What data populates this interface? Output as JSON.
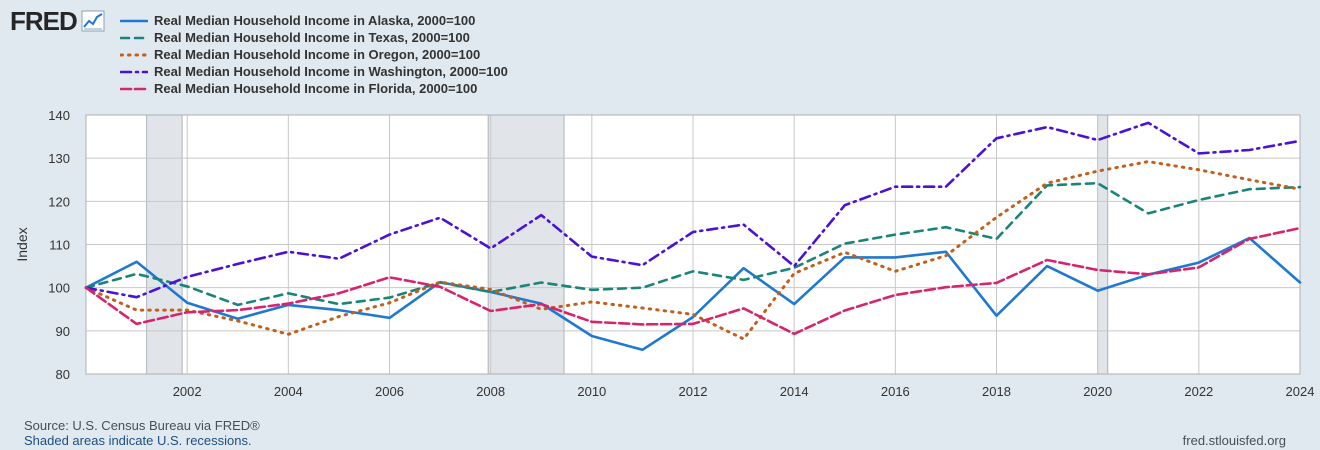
{
  "logo": {
    "text": "FRED",
    "icon": "line-chart-icon"
  },
  "footer": {
    "source": "Source: U.S. Census Bureau via FRED®",
    "recessions_note": "Shaded areas indicate U.S. recessions.",
    "site": "fred.stlouisfed.org"
  },
  "chart_data": {
    "type": "line",
    "ylabel": "Index",
    "ylim": [
      80,
      140
    ],
    "xlim": [
      2000,
      2024
    ],
    "yticks": [
      80,
      90,
      100,
      110,
      120,
      130,
      140
    ],
    "xticks": [
      2002,
      2004,
      2006,
      2008,
      2010,
      2012,
      2014,
      2016,
      2018,
      2020,
      2022,
      2024
    ],
    "grid": true,
    "legend_position": "top-left",
    "recessions": [
      [
        2001.2,
        2001.9
      ],
      [
        2007.95,
        2009.45
      ],
      [
        2020.0,
        2020.2
      ]
    ],
    "x": [
      2000,
      2001,
      2002,
      2003,
      2004,
      2005,
      2006,
      2007,
      2008,
      2009,
      2010,
      2011,
      2012,
      2013,
      2014,
      2015,
      2016,
      2017,
      2018,
      2019,
      2020,
      2021,
      2022,
      2023,
      2024
    ],
    "series": [
      {
        "name": "Real Median Household Income in Alaska, 2000=100",
        "color": "#1f78d1",
        "dash": "solid",
        "values": [
          100,
          106,
          96.5,
          92.8,
          96,
          94.8,
          93,
          101.3,
          99,
          96.3,
          88.8,
          85.6,
          93.2,
          104.5,
          96.2,
          107,
          107,
          108.3,
          93.5,
          105,
          99.3,
          103,
          105.8,
          111.5,
          101.2
        ]
      },
      {
        "name": "Real Median Household Income in Texas, 2000=100",
        "color": "#1b8478",
        "dash": "dash",
        "values": [
          100,
          103.2,
          100.3,
          96,
          98.7,
          96.2,
          97.7,
          101.2,
          99,
          101.2,
          99.5,
          100,
          103.8,
          101.8,
          104.6,
          110.2,
          112.3,
          114,
          111.3,
          123.7,
          124.2,
          117.2,
          120.3,
          122.8,
          123.3
        ]
      },
      {
        "name": "Real Median Household Income in Oregon, 2000=100",
        "color": "#c0601c",
        "dash": "dot",
        "values": [
          100,
          94.8,
          94.8,
          92.3,
          89.2,
          93.3,
          96.5,
          101.3,
          99.6,
          95,
          96.7,
          95.3,
          93.8,
          88.1,
          103.3,
          108.2,
          103.8,
          107.4,
          116.3,
          124.2,
          127,
          129.2,
          127.3,
          125,
          122.8
        ]
      },
      {
        "name": "Real Median Household Income in Washington, 2000=100",
        "color": "#4a12d8",
        "dash": "dashdot",
        "values": [
          100,
          97.8,
          102.5,
          105.5,
          108.3,
          106.7,
          112.3,
          116.2,
          109.1,
          116.8,
          107.2,
          105.2,
          112.9,
          114.6,
          105,
          119.1,
          123.4,
          123.4,
          134.6,
          137.2,
          134.2,
          138.2,
          131.1,
          131.9,
          134
        ]
      },
      {
        "name": "Real Median Household Income in Florida, 2000=100",
        "color": "#d6246e",
        "dash": "longdash",
        "values": [
          100,
          91.6,
          94.3,
          94.8,
          96.3,
          98.7,
          102.4,
          100.2,
          94.6,
          96.2,
          92.1,
          91.5,
          91.6,
          95.2,
          89.3,
          94.7,
          98.3,
          100.1,
          101.1,
          106.4,
          104.1,
          103.1,
          104.7,
          111.3,
          113.8
        ]
      }
    ]
  }
}
